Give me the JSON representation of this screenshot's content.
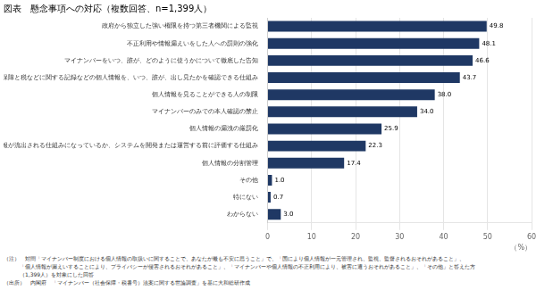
{
  "chart_data": {
    "type": "bar",
    "orientation": "horizontal",
    "title": "図表　懸念事項への対応（複数回答、n=1,399人）",
    "categories": [
      "政府から独立した強い権限を持つ第三者機関による監視",
      "不正利用や情報漏えいをした人への罰則の強化",
      "マイナンバーをいつ、誰が、どのように使うかについて徹底した告知",
      "社会保障と税などに関する記録などの個人情報を、いつ、誰が、出し見たかを確認できる仕組み",
      "個人情報を見ることができる人の制限",
      "マイナンバーのみでの本人確認の禁止",
      "個人情報の漏洩の厳罰化",
      "個人情報が流出される仕組みになっているか、システムを開発または運営する前に評価する仕組み",
      "個人情報の分割管理",
      "その他",
      "特にない",
      "わからない"
    ],
    "values": [
      49.8,
      48.1,
      46.6,
      43.7,
      38.0,
      34.0,
      25.9,
      22.3,
      17.4,
      1.0,
      0.7,
      3.0
    ],
    "value_labels": [
      "49.8",
      "48.1",
      "46.6",
      "43.7",
      "38.0",
      "34.0",
      "25.9",
      "22.3",
      "17.4",
      "1.0",
      "0.7",
      "3.0"
    ],
    "data_labels": true,
    "color": "#1f3864",
    "xlim": [
      0,
      60
    ],
    "xticks": [
      0,
      10,
      20,
      30,
      40,
      50,
      60
    ],
    "xlabel": "（%）",
    "grid": true,
    "notes": [
      "（注）　対問「マイナンバー制度における個人情報の取扱いに関することで、あなたが最も不安に思うこと」で、「国により個人情報が一元管理され、監視、監督されるおそれがあること」、",
      "　　　「個人情報が漏えいすることにより、プライバシーが侵害されるおそれがあること」、「マイナンバーや個人情報の不正利用により、被害に遭うおそれがあること」、「その他」と答えた方",
      "　　　（1,399人）を対象にした回答"
    ],
    "source": "（出所）　内閣府　「マイナンバー（社会保障・税番号）法案に関する世論調査」を基に大和総研作成"
  }
}
